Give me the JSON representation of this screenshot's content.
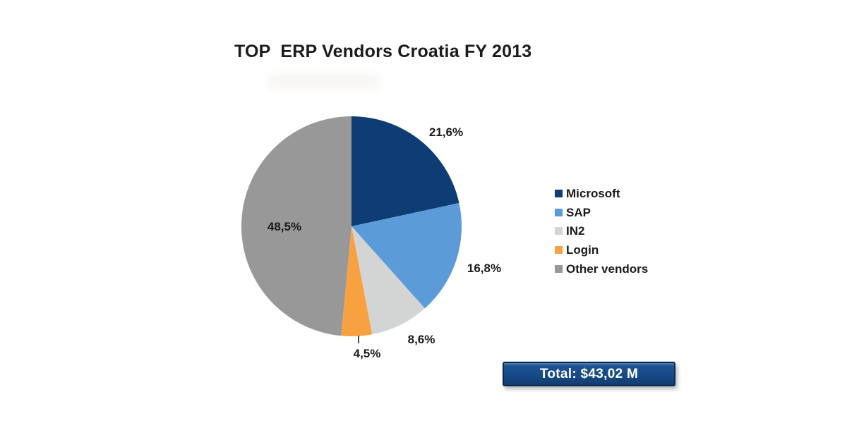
{
  "title": "TOP  ERP Vendors Croatia FY 2013",
  "chart_data": {
    "type": "pie",
    "title": "TOP  ERP Vendors Croatia FY 2013",
    "categories": [
      "Microsoft",
      "SAP",
      "IN2",
      "Login",
      "Other vendors"
    ],
    "values": [
      21.6,
      16.8,
      8.6,
      4.5,
      48.5
    ],
    "value_labels": [
      "21,6%",
      "16,8%",
      "8,6%",
      "4,5%",
      "48,5%"
    ],
    "colors": [
      "#0d3d74",
      "#5b9bd8",
      "#d3d4d4",
      "#f7a140",
      "#989898"
    ],
    "unit": "percent of market share",
    "start_angle_deg": 0,
    "direction": "clockwise",
    "grid": false,
    "legend_position": "right",
    "total_label": "Total: $43,02 M"
  },
  "legend": {
    "items": [
      {
        "label": "Microsoft",
        "color": "#0d3d74"
      },
      {
        "label": "SAP",
        "color": "#5b9bd8"
      },
      {
        "label": "IN2",
        "color": "#d3d4d4"
      },
      {
        "label": "Login",
        "color": "#f7a140"
      },
      {
        "label": "Other vendors",
        "color": "#989898"
      }
    ]
  },
  "total_box": {
    "label": "Total: $43,02 M",
    "background": "#1b4e8c",
    "border_color": "#0a2a4e",
    "text_color": "#ffffff"
  }
}
